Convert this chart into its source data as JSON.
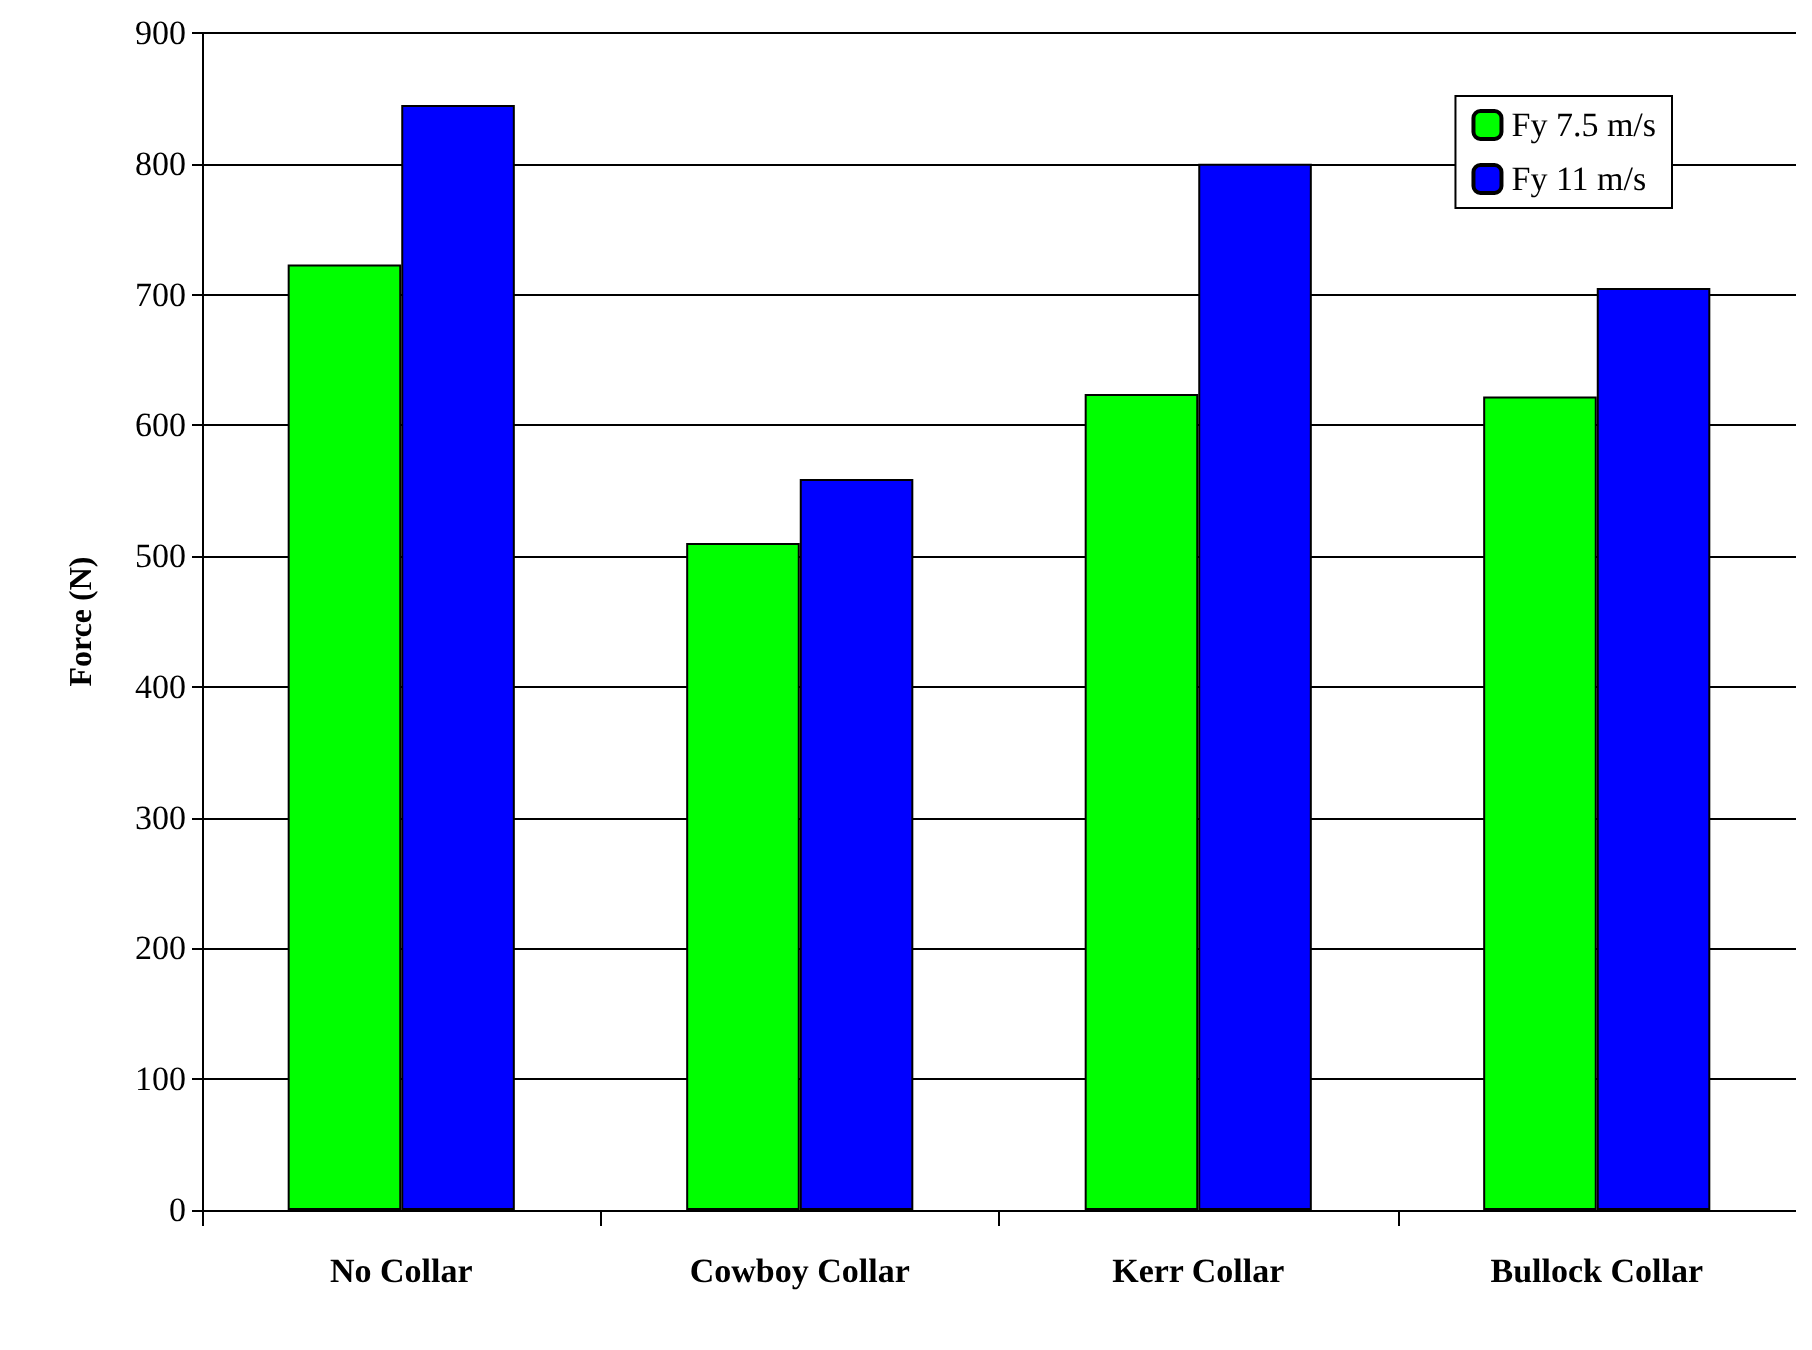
{
  "chart_data": {
    "type": "bar",
    "ylabel": "Force (N)",
    "categories": [
      "No Collar",
      "Cowboy Collar",
      "Kerr Collar",
      "Bullock Collar"
    ],
    "series": [
      {
        "name": "Fy 7.5 m/s",
        "color": "#00ff00",
        "values": [
          723,
          510,
          624,
          622
        ]
      },
      {
        "name": "Fy 11 m/s",
        "color": "#0000ff",
        "values": [
          845,
          559,
          800,
          705
        ]
      }
    ],
    "ylim": [
      0,
      900
    ],
    "yticks": [
      0,
      100,
      200,
      300,
      400,
      500,
      600,
      700,
      800,
      900
    ],
    "grid": "y",
    "legend": "top right"
  }
}
